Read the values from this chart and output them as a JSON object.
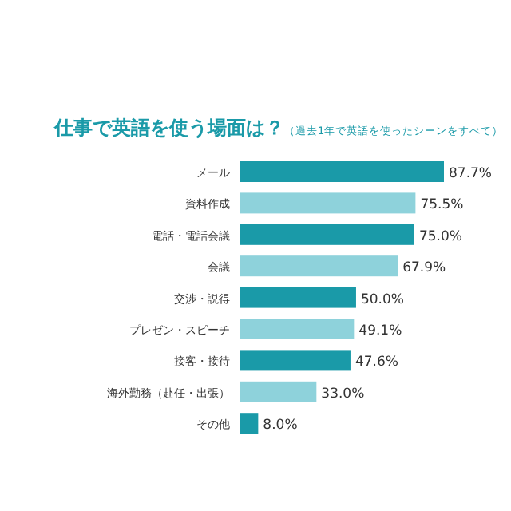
{
  "chart_data": {
    "type": "bar",
    "orientation": "horizontal",
    "title": "仕事で英語を使う場面は？",
    "subtitle": "（過去1年で英語を使ったシーンをすべて）",
    "categories": [
      "メール",
      "資料作成",
      "電話・電話会議",
      "会議",
      "交渉・説得",
      "プレゼン・スピーチ",
      "接客・接待",
      "海外勤務（赴任・出張）",
      "その他"
    ],
    "values": [
      87.7,
      75.5,
      75.0,
      67.9,
      50.0,
      49.1,
      47.6,
      33.0,
      8.0
    ],
    "colors": [
      "#1a9aa8",
      "#8ed2db",
      "#1a9aa8",
      "#8ed2db",
      "#1a9aa8",
      "#8ed2db",
      "#1a9aa8",
      "#8ed2db",
      "#1a9aa8"
    ],
    "value_labels": [
      "87.7%",
      "75.5%",
      "75.0%",
      "67.9%",
      "50.0%",
      "49.1%",
      "47.6%",
      "33.0%",
      "8.0%"
    ]
  }
}
